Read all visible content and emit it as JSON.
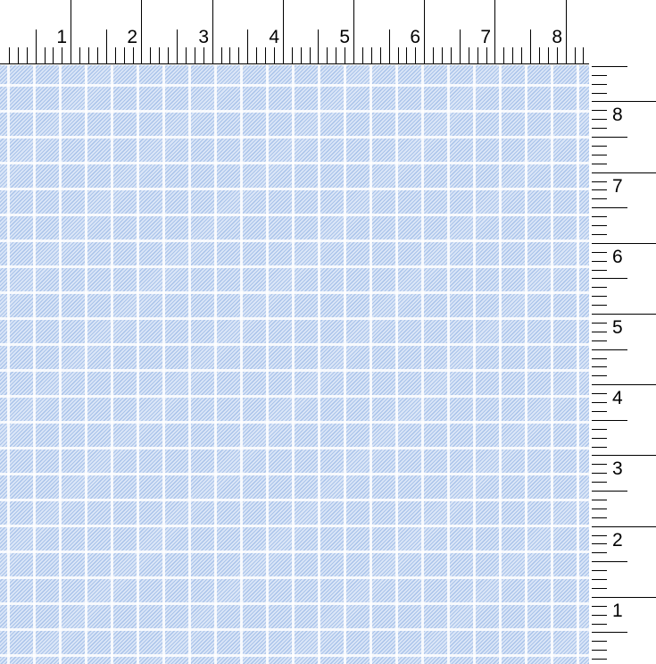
{
  "top_ruler": {
    "labels": [
      "1",
      "2",
      "3",
      "4",
      "5",
      "6",
      "7",
      "8"
    ]
  },
  "right_ruler": {
    "labels": [
      "8",
      "7",
      "6",
      "5",
      "4",
      "3",
      "2",
      "1"
    ]
  },
  "fabric": {
    "pattern": "gingham",
    "color": "#a9c3ea",
    "background": "#eef3fb"
  }
}
